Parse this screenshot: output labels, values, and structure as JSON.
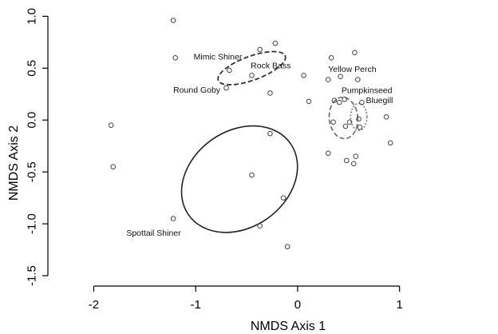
{
  "chart_data": {
    "type": "scatter",
    "title": "",
    "xlabel": "NMDS Axis 1",
    "ylabel": "NMDS Axis 2",
    "xlim": [
      -2.45,
      1.95
    ],
    "ylim": [
      -1.6,
      1.08
    ],
    "xticks": [
      -2,
      -1,
      0,
      1
    ],
    "xtick_labels": [
      "-2",
      "-1",
      "0",
      "1"
    ],
    "yticks": [
      -1.5,
      -1.0,
      -0.5,
      0.0,
      0.5,
      1.0
    ],
    "ytick_labels": [
      "-1.5",
      "-1.0",
      "-0.5",
      "0.0",
      "0.5",
      "1.0"
    ],
    "grid": false,
    "points": [
      {
        "x": -1.22,
        "y": 0.96
      },
      {
        "x": -1.2,
        "y": 0.6
      },
      {
        "x": -0.67,
        "y": 0.48
      },
      {
        "x": -0.7,
        "y": 0.31
      },
      {
        "x": -0.45,
        "y": 0.43
      },
      {
        "x": -0.37,
        "y": 0.68
      },
      {
        "x": -0.22,
        "y": 0.74
      },
      {
        "x": -0.27,
        "y": 0.26
      },
      {
        "x": 0.06,
        "y": 0.43
      },
      {
        "x": 0.11,
        "y": 0.18
      },
      {
        "x": -1.83,
        "y": -0.05
      },
      {
        "x": -1.81,
        "y": -0.45
      },
      {
        "x": -0.27,
        "y": -0.13
      },
      {
        "x": -0.45,
        "y": -0.53
      },
      {
        "x": -0.14,
        "y": -0.75
      },
      {
        "x": -1.22,
        "y": -0.95
      },
      {
        "x": -0.37,
        "y": -1.02
      },
      {
        "x": -0.1,
        "y": -1.22
      },
      {
        "x": 0.33,
        "y": 0.6
      },
      {
        "x": 0.56,
        "y": 0.65
      },
      {
        "x": 0.3,
        "y": 0.39
      },
      {
        "x": 0.42,
        "y": 0.42
      },
      {
        "x": 0.59,
        "y": 0.39
      },
      {
        "x": 0.36,
        "y": 0.19
      },
      {
        "x": 0.41,
        "y": 0.17
      },
      {
        "x": 0.46,
        "y": 0.2
      },
      {
        "x": 0.63,
        "y": 0.17
      },
      {
        "x": 0.35,
        "y": -0.02
      },
      {
        "x": 0.47,
        "y": -0.06
      },
      {
        "x": 0.51,
        "y": -0.02
      },
      {
        "x": 0.6,
        "y": 0.01
      },
      {
        "x": 0.61,
        "y": -0.07
      },
      {
        "x": 0.87,
        "y": 0.03
      },
      {
        "x": 0.3,
        "y": -0.32
      },
      {
        "x": 0.48,
        "y": -0.39
      },
      {
        "x": 0.57,
        "y": -0.35
      },
      {
        "x": 0.55,
        "y": -0.42
      },
      {
        "x": 0.91,
        "y": -0.22
      }
    ],
    "groups": [
      {
        "name": "Mimic Shiner",
        "label_x": -1.02,
        "label_y": 0.585
      },
      {
        "name": "Rock Bass",
        "label_x": -0.46,
        "label_y": 0.5
      },
      {
        "name": "Round Goby",
        "label_x": -1.22,
        "label_y": 0.265
      },
      {
        "name": "Spottail Shiner",
        "label_x": -1.68,
        "label_y": -1.115
      },
      {
        "name": "Yellow Perch",
        "label_x": 0.3,
        "label_y": 0.465
      },
      {
        "name": "Pumpkinseed",
        "label_x": 0.43,
        "label_y": 0.26
      },
      {
        "name": "Bluegill",
        "label_x": 0.67,
        "label_y": 0.165
      }
    ],
    "ellipses": [
      {
        "cx": -0.45,
        "cy": 0.5,
        "rx": 0.7,
        "ry": 0.23,
        "angle_deg": -20,
        "style": "dashed",
        "color": "#333333"
      },
      {
        "cx": -0.57,
        "cy": -0.57,
        "rx": 1.22,
        "ry": 0.93,
        "angle_deg": -35,
        "style": "solid",
        "color": "#222222"
      },
      {
        "cx": 0.45,
        "cy": 0.02,
        "rx": 0.28,
        "ry": 0.4,
        "angle_deg": -5,
        "style": "dashed",
        "color": "#777777"
      },
      {
        "cx": 0.6,
        "cy": 0.03,
        "rx": 0.16,
        "ry": 0.26,
        "angle_deg": 0,
        "style": "dotted",
        "color": "#888888"
      }
    ]
  }
}
